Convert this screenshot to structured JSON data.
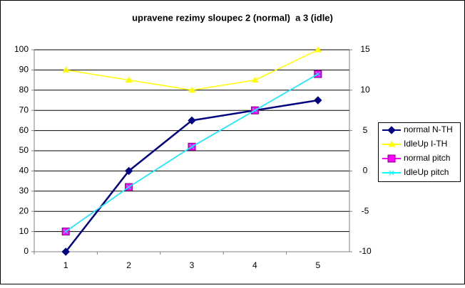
{
  "chart_data": {
    "type": "line",
    "title": "upravene rezimy sloupec 2 (normal)  a 3 (idle)",
    "categories": [
      "1",
      "2",
      "3",
      "4",
      "5"
    ],
    "ylim": [
      0,
      100
    ],
    "yticks": [
      0,
      10,
      20,
      30,
      40,
      50,
      60,
      70,
      80,
      90,
      100
    ],
    "y2lim": [
      -10,
      15
    ],
    "y2ticks": [
      -10,
      -5,
      0,
      5,
      10,
      15
    ],
    "grid": true,
    "legend": "right",
    "series": [
      {
        "name": "normal N-TH",
        "color": "#000080",
        "marker": "diamond",
        "values": [
          0,
          40,
          65,
          70,
          75
        ]
      },
      {
        "name": "IdleUp I-TH",
        "color": "#ffff00",
        "marker": "triangle",
        "values": [
          90,
          85,
          80,
          85,
          100
        ]
      },
      {
        "name": "normal pitch",
        "color": "#ff00ff",
        "marker": "square",
        "axis": "y2",
        "values": [
          -7.5,
          -2,
          3,
          7.5,
          12
        ]
      },
      {
        "name": "IdleUp pitch",
        "color": "#00ffff",
        "marker": "x",
        "axis": "y2",
        "values": [
          -7.5,
          -2,
          3,
          7.5,
          12
        ]
      }
    ]
  }
}
